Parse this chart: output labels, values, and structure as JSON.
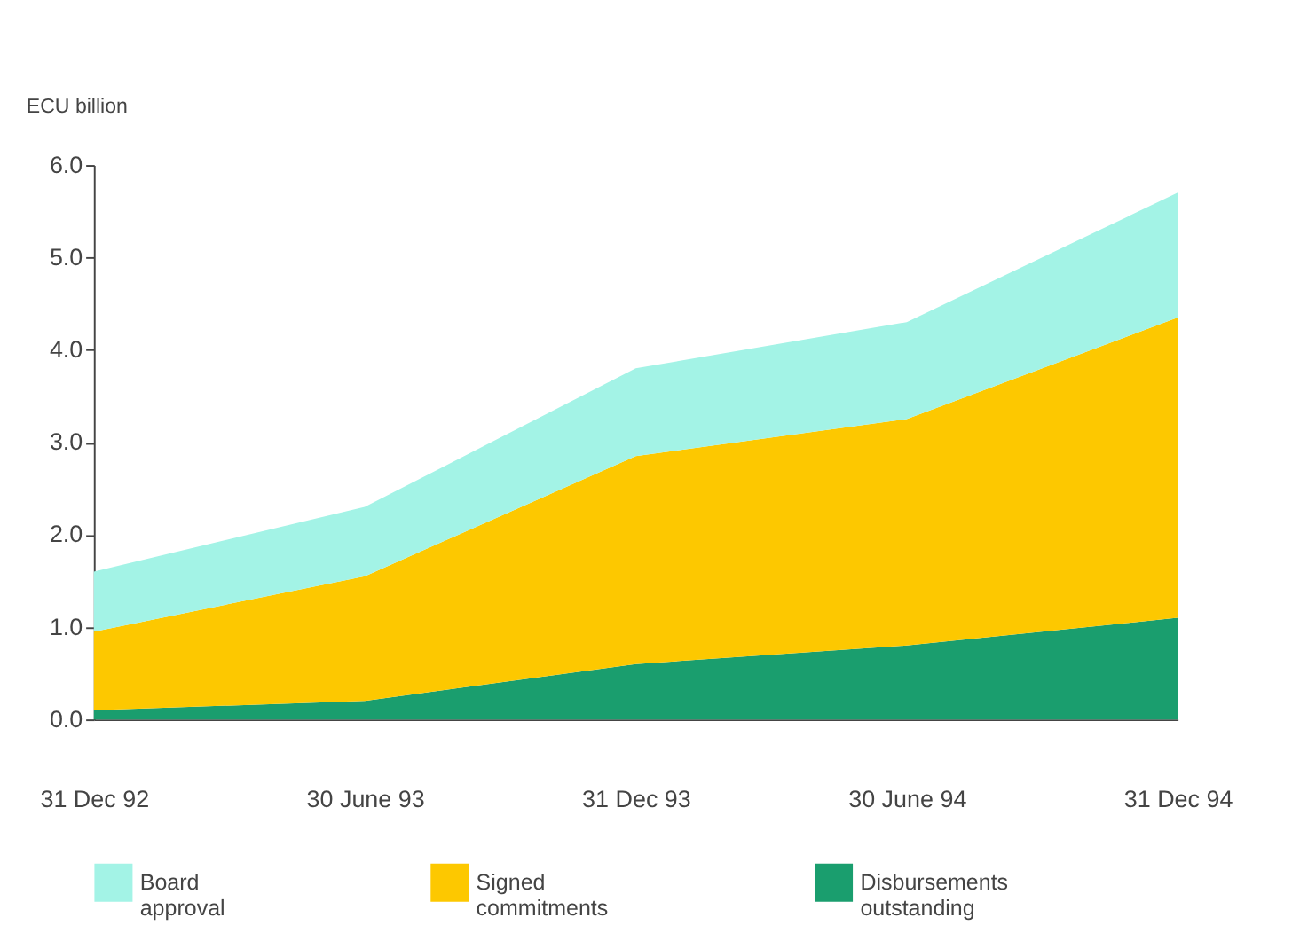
{
  "chart_data": {
    "type": "area",
    "stacked": true,
    "ylabel": "ECU billion",
    "categories": [
      "31 Dec 92",
      "30 June 93",
      "31 Dec 93",
      "30 June 94",
      "31 Dec 94"
    ],
    "series": [
      {
        "name": "Disbursements outstanding",
        "color": "#1a9e6e",
        "values": [
          0.1,
          0.2,
          0.6,
          0.8,
          1.1
        ]
      },
      {
        "name": "Signed commitments",
        "color": "#fdc800",
        "values": [
          0.85,
          1.35,
          2.25,
          2.45,
          3.25
        ]
      },
      {
        "name": "Board approval",
        "color": "#a3f3e6",
        "values": [
          0.65,
          0.75,
          0.95,
          1.05,
          1.35
        ]
      }
    ],
    "ylim": [
      0,
      6
    ],
    "yticks": [
      {
        "value": 0,
        "label": "0.0"
      },
      {
        "value": 1,
        "label": "1.0"
      },
      {
        "value": 2,
        "label": "2.0"
      },
      {
        "value": 3,
        "label": "3.0"
      },
      {
        "value": 4,
        "label": "4.0"
      },
      {
        "value": 5,
        "label": "5.0"
      },
      {
        "value": 6,
        "label": "6.0"
      }
    ],
    "grid": false,
    "legend": "bottom"
  }
}
